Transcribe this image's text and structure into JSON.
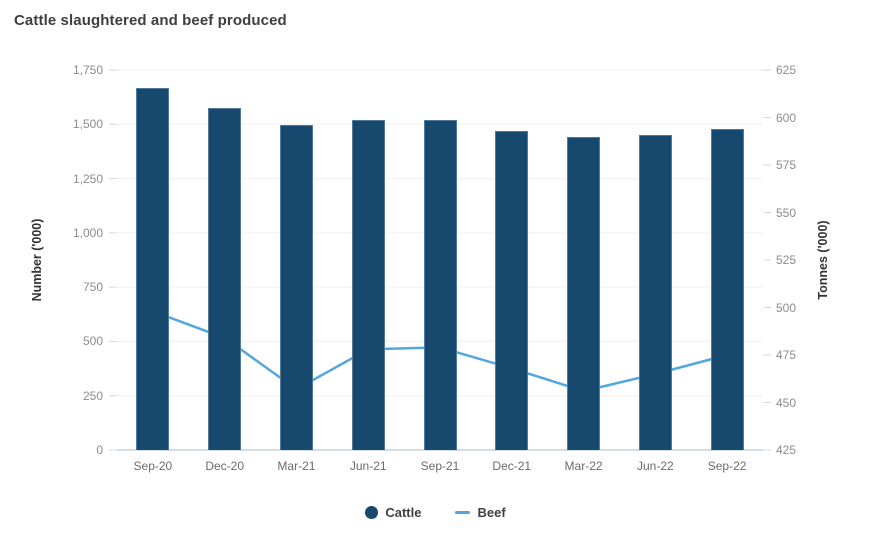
{
  "title": "Cattle slaughtered and beef produced",
  "chart_data": {
    "type": "combo: bar (left axis) + line (right axis)",
    "title": "Cattle slaughtered and beef produced",
    "categories": [
      "Sep-20",
      "Dec-20",
      "Mar-21",
      "Jun-21",
      "Sep-21",
      "Dec-21",
      "Mar-22",
      "Jun-22",
      "Sep-22"
    ],
    "series": [
      {
        "name": "Cattle",
        "type": "bar",
        "axis": "left",
        "color": "#17496e",
        "values": [
          1667,
          1577,
          1496,
          1519,
          1518,
          1469,
          1441,
          1449,
          1476
        ]
      },
      {
        "name": "Beef",
        "type": "line",
        "axis": "right",
        "color": "#54a6de",
        "values": [
          498,
          484,
          457,
          478,
          479,
          468,
          456,
          465,
          475
        ]
      }
    ],
    "left_axis": {
      "label": "Number ('000)",
      "min": 0,
      "max": 1750,
      "step": 250,
      "tick_values": [
        0,
        250,
        500,
        750,
        1000,
        1250,
        1500,
        1750
      ],
      "tick_labels": [
        "0",
        "250",
        "500",
        "750",
        "1,000",
        "1,250",
        "1,500",
        "1,750"
      ]
    },
    "right_axis": {
      "label": "Tonnes ('000)",
      "min": 425,
      "max": 625,
      "step": 25,
      "tick_values": [
        425,
        450,
        475,
        500,
        525,
        550,
        575,
        600,
        625
      ],
      "tick_labels": [
        "425",
        "450",
        "475",
        "500",
        "525",
        "550",
        "575",
        "600",
        "625"
      ]
    },
    "legend": {
      "position": "bottom",
      "entries": [
        "Cattle",
        "Beef"
      ]
    },
    "grid": true
  },
  "colors": {
    "bar": "#17496e",
    "line": "#54a6de",
    "gridline": "#f0f0f0",
    "baseline": "#c3d3df",
    "tick": "#d9d9d9",
    "title_text": "#3f3f3f",
    "tick_text": "#8c8c8c",
    "xlabel_text": "#6b6b6b",
    "legend_text": "#404040"
  }
}
